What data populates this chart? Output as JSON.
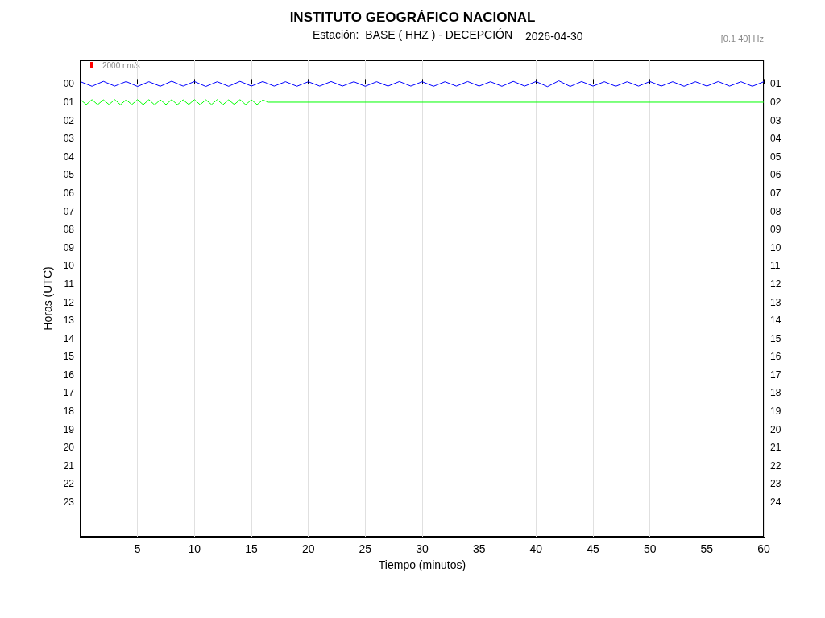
{
  "chart_data": {
    "type": "line",
    "title": "INSTITUTO GEOGRÁFICO NACIONAL",
    "subtitle": "Estación:  BASE ( HHZ ) - DECEPCIÓN",
    "xlabel": "Tiempo (minutos)",
    "ylabel": "Horas (UTC)",
    "annotations": [
      "2026-04-30",
      "[0.1 40] Hz",
      "2000 nm/s"
    ],
    "xlim": [
      0,
      60
    ],
    "xticks": [
      5,
      10,
      15,
      20,
      25,
      30,
      35,
      40,
      45,
      50,
      55,
      60
    ],
    "ylim": [
      24.9,
      -1.3
    ],
    "yticks": [
      {
        "value": 0,
        "label": "00"
      },
      {
        "value": 1,
        "label": "01"
      },
      {
        "value": 2,
        "label": "02"
      },
      {
        "value": 3,
        "label": "03"
      },
      {
        "value": 4,
        "label": "04"
      },
      {
        "value": 5,
        "label": "05"
      },
      {
        "value": 6,
        "label": "06"
      },
      {
        "value": 7,
        "label": "07"
      },
      {
        "value": 8,
        "label": "08"
      },
      {
        "value": 9,
        "label": "09"
      },
      {
        "value": 10,
        "label": "10"
      },
      {
        "value": 11,
        "label": "11"
      },
      {
        "value": 12,
        "label": "12"
      },
      {
        "value": 13,
        "label": "13"
      },
      {
        "value": 14,
        "label": "14"
      },
      {
        "value": 15,
        "label": "15"
      },
      {
        "value": 16,
        "label": "16"
      },
      {
        "value": 17,
        "label": "17"
      },
      {
        "value": 18,
        "label": "18"
      },
      {
        "value": 19,
        "label": "19"
      },
      {
        "value": 20,
        "label": "20"
      },
      {
        "value": 21,
        "label": "21"
      },
      {
        "value": 22,
        "label": "22"
      },
      {
        "value": 23,
        "label": "23"
      }
    ],
    "y2lim": [
      25.9,
      -0.3
    ],
    "y2ticks": [
      {
        "value": 1,
        "label": "01"
      },
      {
        "value": 2,
        "label": "02"
      },
      {
        "value": 3,
        "label": "03"
      },
      {
        "value": 4,
        "label": "04"
      },
      {
        "value": 5,
        "label": "05"
      },
      {
        "value": 6,
        "label": "06"
      },
      {
        "value": 7,
        "label": "07"
      },
      {
        "value": 8,
        "label": "08"
      },
      {
        "value": 9,
        "label": "09"
      },
      10,
      11,
      12,
      13,
      14,
      15,
      16,
      17,
      18,
      19,
      20,
      21,
      22,
      23,
      24
    ],
    "grid": "x",
    "marker": "none",
    "line_style": "solid",
    "series": [
      {
        "color": "#0000ff",
        "x": [
          0,
          1,
          2,
          3,
          4,
          5,
          6,
          7,
          8,
          9,
          10,
          11,
          12,
          13,
          14,
          15,
          16,
          17,
          18,
          19,
          20,
          21,
          22,
          23,
          24,
          25,
          26,
          27,
          28,
          29,
          30,
          31,
          32,
          33,
          34,
          35,
          36,
          37,
          38,
          39,
          40,
          41,
          42,
          43,
          44,
          45,
          46,
          47,
          48,
          49,
          50,
          51,
          52,
          53,
          54,
          55,
          56,
          57,
          58,
          59,
          60
        ],
        "values": [
          -0.12,
          0.13,
          -0.14,
          0.12,
          -0.13,
          0.14,
          -0.12,
          0.13,
          -0.15,
          0.12,
          -0.13,
          0.14,
          -0.12,
          0.13,
          -0.14,
          0.12,
          -0.13,
          0.12,
          -0.12,
          0.13,
          -0.12,
          0.12,
          -0.13,
          0.12,
          -0.12,
          0.13,
          -0.12,
          0.12,
          -0.13,
          0.12,
          -0.12,
          0.13,
          -0.12,
          0.12,
          -0.13,
          0.12,
          -0.12,
          0.13,
          -0.14,
          0.12,
          -0.13,
          0.15,
          -0.17,
          0.14,
          -0.13,
          0.12,
          -0.12,
          0.13,
          -0.12,
          0.12,
          -0.13,
          0.12,
          -0.12,
          0.13,
          -0.12,
          0.12,
          -0.13,
          0.12,
          -0.12,
          0.13,
          -0.12
        ]
      },
      {
        "color": "#00ff00",
        "x": [
          0,
          0.5,
          1,
          1.5,
          2,
          2.5,
          3,
          3.5,
          4,
          4.5,
          5,
          5.5,
          6,
          6.5,
          7,
          7.5,
          8,
          8.5,
          9,
          9.5,
          10,
          10.5,
          11,
          11.5,
          12,
          12.5,
          13,
          13.5,
          14,
          14.5,
          15,
          15.5,
          16,
          16.5,
          60
        ],
        "values": [
          0.87,
          1.13,
          0.86,
          1.14,
          0.87,
          1.13,
          0.86,
          1.14,
          0.87,
          1.13,
          0.86,
          1.14,
          0.86,
          1.15,
          0.87,
          1.13,
          0.86,
          1.14,
          0.87,
          1.13,
          0.86,
          1.14,
          0.87,
          1.13,
          0.86,
          1.14,
          0.87,
          1.13,
          0.86,
          1.14,
          0.87,
          1.13,
          0.88,
          1,
          1
        ]
      }
    ]
  }
}
